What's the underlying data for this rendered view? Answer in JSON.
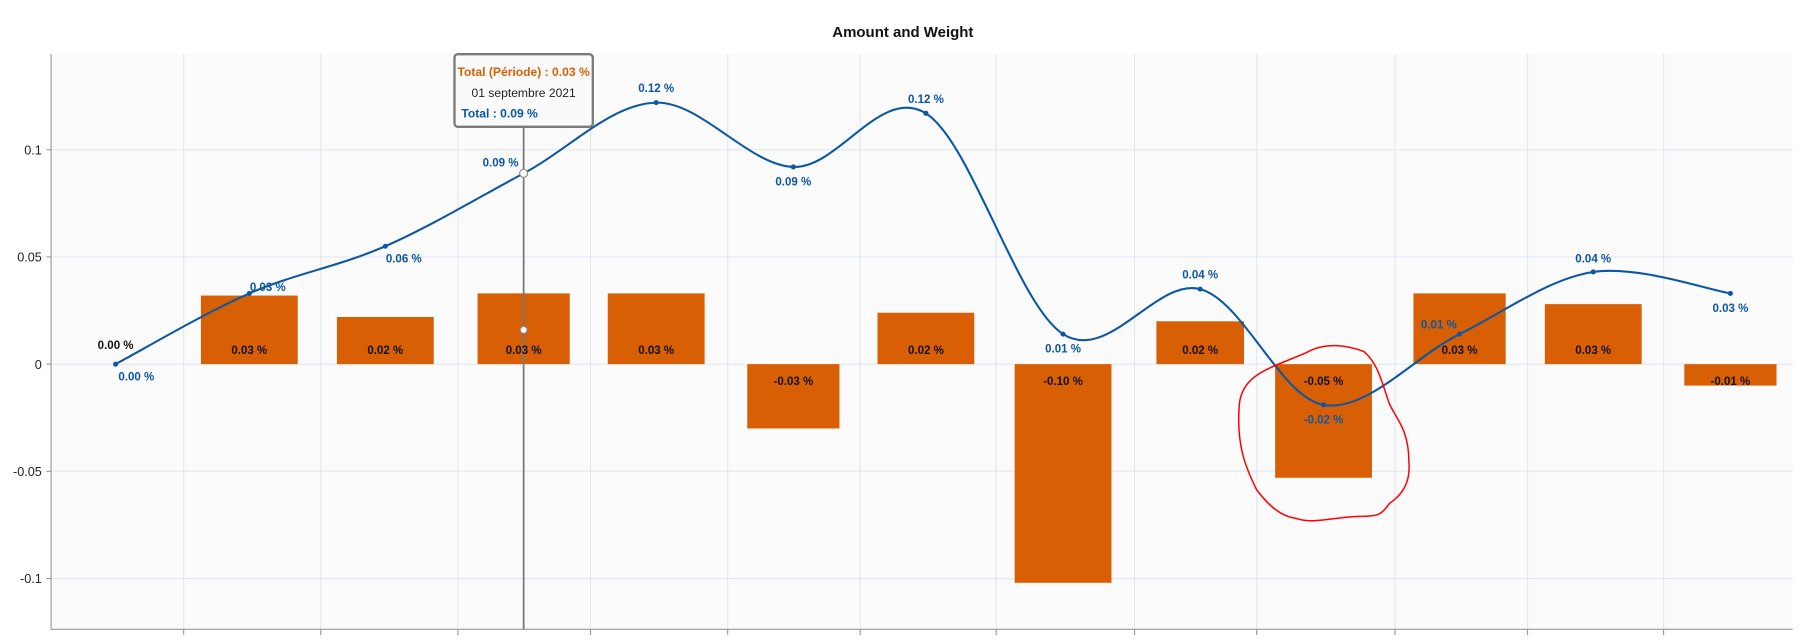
{
  "chart_data": {
    "type": "bar+line",
    "title": "Amount and Weight",
    "xlabel": "",
    "ylabel": "",
    "ylim": [
      -0.1237,
      0.1446
    ],
    "yticks": [
      "0.1",
      "0.05",
      "0",
      "-0.05",
      "-0.1"
    ],
    "ytick_values": [
      0.1,
      0.05,
      0,
      -0.05,
      -0.1
    ],
    "grid": true,
    "colors": {
      "bar": "#d95f04",
      "line": "#0b57a4",
      "highlight": "#ff0000"
    },
    "bar_series": {
      "name": "Total (Période)",
      "values": [
        0.032,
        0.022,
        0.033,
        0.033,
        -0.03,
        0.024,
        -0.102,
        0.02,
        -0.053,
        0.033,
        0.028,
        -0.01
      ],
      "labels": [
        "0.03 %",
        "0.02 %",
        "0.03 %",
        "0.03 %",
        "-0.03 %",
        "0.02 %",
        "-0.10 %",
        "0.02 %",
        "-0.05 %",
        "0.03 %",
        "0.03 %",
        "-0.01 %"
      ]
    },
    "line_series": {
      "name": "Total",
      "values": [
        0.0,
        0.033,
        0.055,
        0.089,
        0.122,
        0.092,
        0.117,
        0.014,
        0.035,
        -0.019,
        0.014,
        0.043,
        0.033
      ],
      "labels": [
        "0.00 %",
        "0.03 %",
        "0.06 %",
        "0.09 %",
        "0.12 %",
        "0.09 %",
        "0.12 %",
        "0.01 %",
        "0.04 %",
        "-0.02 %",
        "0.01 %",
        "0.04 %",
        "0.03 %"
      ]
    },
    "start_label": "0.00 %",
    "tooltip": {
      "period_line": "Total (Période) : 0.03 %",
      "date": "01 septembre 2021",
      "total_line": "Total : 0.09 %",
      "point_index": 3
    },
    "annotation": "red hand-drawn circle around 9th bar (-0.05 %)"
  }
}
